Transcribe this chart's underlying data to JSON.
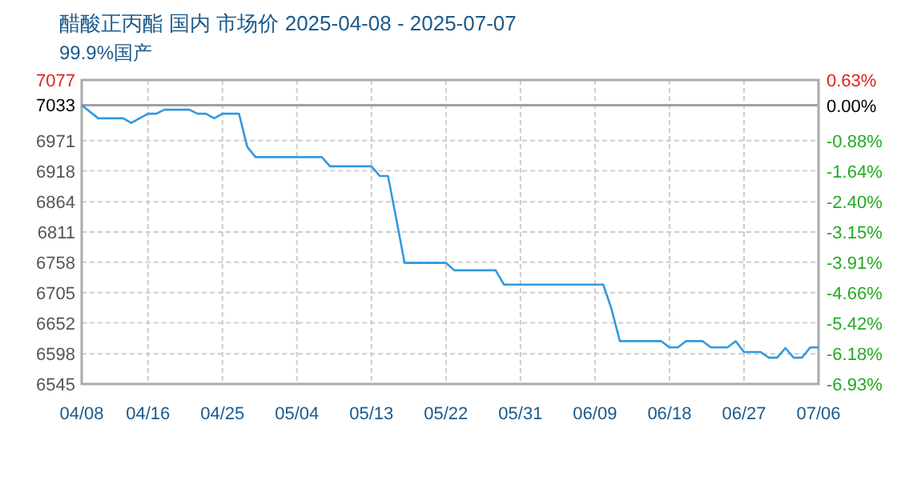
{
  "chart_data": {
    "type": "line",
    "title": "醋酸正丙酯 国内 市场价 2025-04-08 - 2025-07-07",
    "subtitle": "99.9%国产",
    "x": [
      "2025-04-08",
      "2025-04-10",
      "2025-04-13",
      "2025-04-14",
      "2025-04-16",
      "2025-04-17",
      "2025-04-18",
      "2025-04-21",
      "2025-04-22",
      "2025-04-23",
      "2025-04-24",
      "2025-04-25",
      "2025-04-27",
      "2025-04-28",
      "2025-04-29",
      "2025-05-07",
      "2025-05-08",
      "2025-05-13",
      "2025-05-14",
      "2025-05-15",
      "2025-05-16",
      "2025-05-17",
      "2025-05-22",
      "2025-05-23",
      "2025-05-28",
      "2025-05-29",
      "2025-06-10",
      "2025-06-11",
      "2025-06-12",
      "2025-06-17",
      "2025-06-18",
      "2025-06-19",
      "2025-06-20",
      "2025-06-22",
      "2025-06-23",
      "2025-06-25",
      "2025-06-26",
      "2025-06-27",
      "2025-06-29",
      "2025-06-30",
      "2025-07-01",
      "2025-07-02",
      "2025-07-03",
      "2025-07-04",
      "2025-07-05",
      "2025-07-06"
    ],
    "series": [
      {
        "color": "#3399dd",
        "values": [
          7033,
          7010,
          7010,
          7002,
          7018,
          7018,
          7025,
          7025,
          7018,
          7018,
          7010,
          7018,
          7018,
          6960,
          6942,
          6942,
          6926,
          6926,
          6909,
          6909,
          6834,
          6757,
          6757,
          6744,
          6744,
          6719,
          6719,
          6676,
          6620,
          6620,
          6609,
          6609,
          6620,
          6620,
          6609,
          6609,
          6620,
          6601,
          6601,
          6591,
          6591,
          6608,
          6591,
          6591,
          6609,
          6609
        ]
      }
    ],
    "xlim": [
      "2025-04-08",
      "2025-07-06"
    ],
    "xticks": [
      {
        "value": "2025-04-08",
        "label": "04/08"
      },
      {
        "value": "2025-04-16",
        "label": "04/16"
      },
      {
        "value": "2025-04-25",
        "label": "04/25"
      },
      {
        "value": "2025-05-04",
        "label": "05/04"
      },
      {
        "value": "2025-05-13",
        "label": "05/13"
      },
      {
        "value": "2025-05-22",
        "label": "05/22"
      },
      {
        "value": "2025-05-31",
        "label": "05/31"
      },
      {
        "value": "2025-06-09",
        "label": "06/09"
      },
      {
        "value": "2025-06-18",
        "label": "06/18"
      },
      {
        "value": "2025-06-27",
        "label": "06/27"
      },
      {
        "value": "2025-07-06",
        "label": "07/06"
      }
    ],
    "ylim": [
      6545,
      7077
    ],
    "yticks": [
      7077,
      7033,
      6971,
      6918,
      6864,
      6811,
      6758,
      6705,
      6652,
      6598,
      6545
    ],
    "y2lim": [
      -6.93,
      0.63
    ],
    "y2ticks": [
      {
        "value": 0.63,
        "label": "0.63%"
      },
      {
        "value": 0,
        "label": "0.00%"
      },
      {
        "value": -0.88,
        "label": "-0.88%"
      },
      {
        "value": -1.64,
        "label": "-1.64%"
      },
      {
        "value": -2.4,
        "label": "-2.40%"
      },
      {
        "value": -3.15,
        "label": "-3.15%"
      },
      {
        "value": -3.91,
        "label": "-3.91%"
      },
      {
        "value": -4.66,
        "label": "-4.66%"
      },
      {
        "value": -5.42,
        "label": "-5.42%"
      },
      {
        "value": -6.18,
        "label": "-6.18%"
      },
      {
        "value": -6.93,
        "label": "-6.93%"
      }
    ],
    "ref_lines": [
      {
        "axis": "y",
        "value": 7033,
        "color": "#a0a0a0"
      }
    ],
    "grid": true,
    "marker": "none",
    "line_style": "solid"
  }
}
